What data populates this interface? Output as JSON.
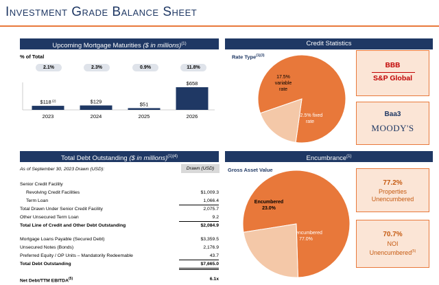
{
  "title": "Investment Grade Balance Sheet",
  "maturities": {
    "header_main": "Upcoming Mortgage Maturities ",
    "header_ital": "($ in millions)",
    "header_sup": "(1)",
    "pct_label": "% of Total",
    "pills": [
      "2.1%",
      "2.3%",
      "0.9%",
      "11.8%"
    ]
  },
  "credit": {
    "header": "Credit Statistics",
    "rate_type": "Rate Type",
    "rate_type_sup": "(1)(3)",
    "sp_rating": "BBB",
    "sp_agency": "S&P Global",
    "moodys_rating": "Baa3",
    "moodys_agency": "MOODY'S"
  },
  "debt": {
    "header_main": "Total Debt Outstanding ",
    "header_ital": "($ in millions)",
    "header_sup": "(1)(4)",
    "as_of": "As of September 30, 2023 Drawn (USD):",
    "drawn_col": "Drawn (USD)",
    "rows": [
      {
        "label": "Senior Credit Facility",
        "value": ""
      },
      {
        "label": "Revolving Credit Facilities",
        "value": "$1,009.3"
      },
      {
        "label": "Term Loan",
        "value": "1,066.4"
      },
      {
        "label": "Total Drawn Under Senior Credit Facility",
        "value": "2,075.7"
      },
      {
        "label": "Other Unsecured Term Loan",
        "value": "9.2"
      },
      {
        "label": "Total Line of Credit and Other Debt Outstanding",
        "value": "$2,084.9"
      },
      {
        "label": "Mortgage Loans Payable (Secured Debt)",
        "value": "$3,359.5"
      },
      {
        "label": "Unsecured Notes (Bonds)",
        "value": "2,176.9"
      },
      {
        "label": "Preferred Equity / OP Units – Mandatorily Redeemable",
        "value": "43.7"
      },
      {
        "label": "Total Debt Outstanding",
        "value": "$7,665.0"
      },
      {
        "label": "Net Debt/TTM EBITDA",
        "label_sup": "(5)",
        "value": "6.1x"
      }
    ]
  },
  "encumbrance": {
    "header": "Encumbrance",
    "header_sup": "(1)",
    "gross_label": "Gross Asset Value",
    "box1_pct": "77.2%",
    "box1_l1": "Properties",
    "box1_l2": "Unencumbered",
    "box2_pct": "70.7%",
    "box2_l1": "NOI",
    "box2_l2": "Unencumbered",
    "box2_sup": "(5)"
  },
  "colors": {
    "navy": "#1f3864",
    "orange": "#e8783a",
    "peach": "#f4c8a8",
    "rating_red": "#c00000"
  },
  "chart_data": [
    {
      "type": "bar",
      "title": "Upcoming Mortgage Maturities ($ in millions)",
      "categories": [
        "2023",
        "2024",
        "2025",
        "2026"
      ],
      "values": [
        118,
        129,
        51,
        658
      ],
      "data_labels": [
        "$118",
        "$129",
        "$51",
        "$658"
      ],
      "first_label_sup": "(2)",
      "pct_of_total": [
        "2.1%",
        "2.3%",
        "0.9%",
        "11.8%"
      ],
      "color": "#1f3864",
      "ylim": [
        0,
        700
      ]
    },
    {
      "type": "pie",
      "title": "Rate Type",
      "slices": [
        {
          "label": "82.5% fixed rate",
          "lines": [
            "82.5% fixed",
            "rate"
          ],
          "value": 82.5,
          "color": "#e8783a"
        },
        {
          "label": "17.5% variable rate",
          "lines": [
            "17.5%",
            "variable",
            "rate"
          ],
          "value": 17.5,
          "color": "#f4c8a8"
        }
      ]
    },
    {
      "type": "pie",
      "title": "Gross Asset Value",
      "slices": [
        {
          "label": "Unencumbered 77.0%",
          "lines": [
            "Unencumbered",
            "77.0%"
          ],
          "value": 77.0,
          "color": "#e8783a"
        },
        {
          "label": "Encumbered 23.0%",
          "lines": [
            "Encumbered",
            "23.0%"
          ],
          "value": 23.0,
          "color": "#f4c8a8"
        }
      ]
    }
  ]
}
